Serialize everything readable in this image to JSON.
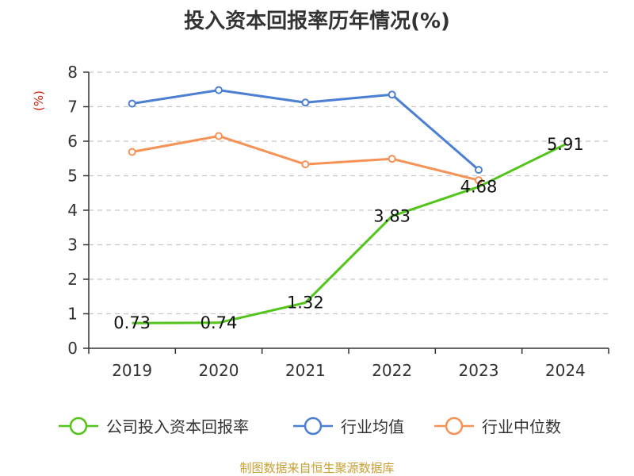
{
  "chart_data": {
    "type": "line",
    "title": "投入资本回报率历年情况(%)",
    "ylabel": "(%)",
    "xlabel": "",
    "categories": [
      "2019",
      "2020",
      "2021",
      "2022",
      "2023",
      "2024"
    ],
    "ylim": [
      0,
      8
    ],
    "yticks": [
      "0",
      "1",
      "2",
      "3",
      "4",
      "5",
      "6",
      "7",
      "8"
    ],
    "grid": true,
    "legend_position": "bottom",
    "series": [
      {
        "name": "公司投入资本回报率",
        "color": "#52c41a",
        "values": [
          0.73,
          0.74,
          1.32,
          3.83,
          4.68,
          5.91
        ],
        "labels": [
          "0.73",
          "0.74",
          "1.32",
          "3.83",
          "4.68",
          "5.91"
        ],
        "markers": [
          false,
          false,
          false,
          false,
          false,
          false
        ]
      },
      {
        "name": "行业均值",
        "color": "#4a7fd4",
        "values": [
          7.09,
          7.48,
          7.12,
          7.35,
          5.17,
          null
        ],
        "markers": [
          true,
          true,
          true,
          true,
          true,
          false
        ]
      },
      {
        "name": "行业中位数",
        "color": "#f79256",
        "values": [
          5.69,
          6.15,
          5.33,
          5.49,
          4.87,
          null
        ],
        "markers": [
          true,
          true,
          true,
          true,
          true,
          false
        ]
      }
    ],
    "source": "制图数据来自恒生聚源数据库"
  }
}
